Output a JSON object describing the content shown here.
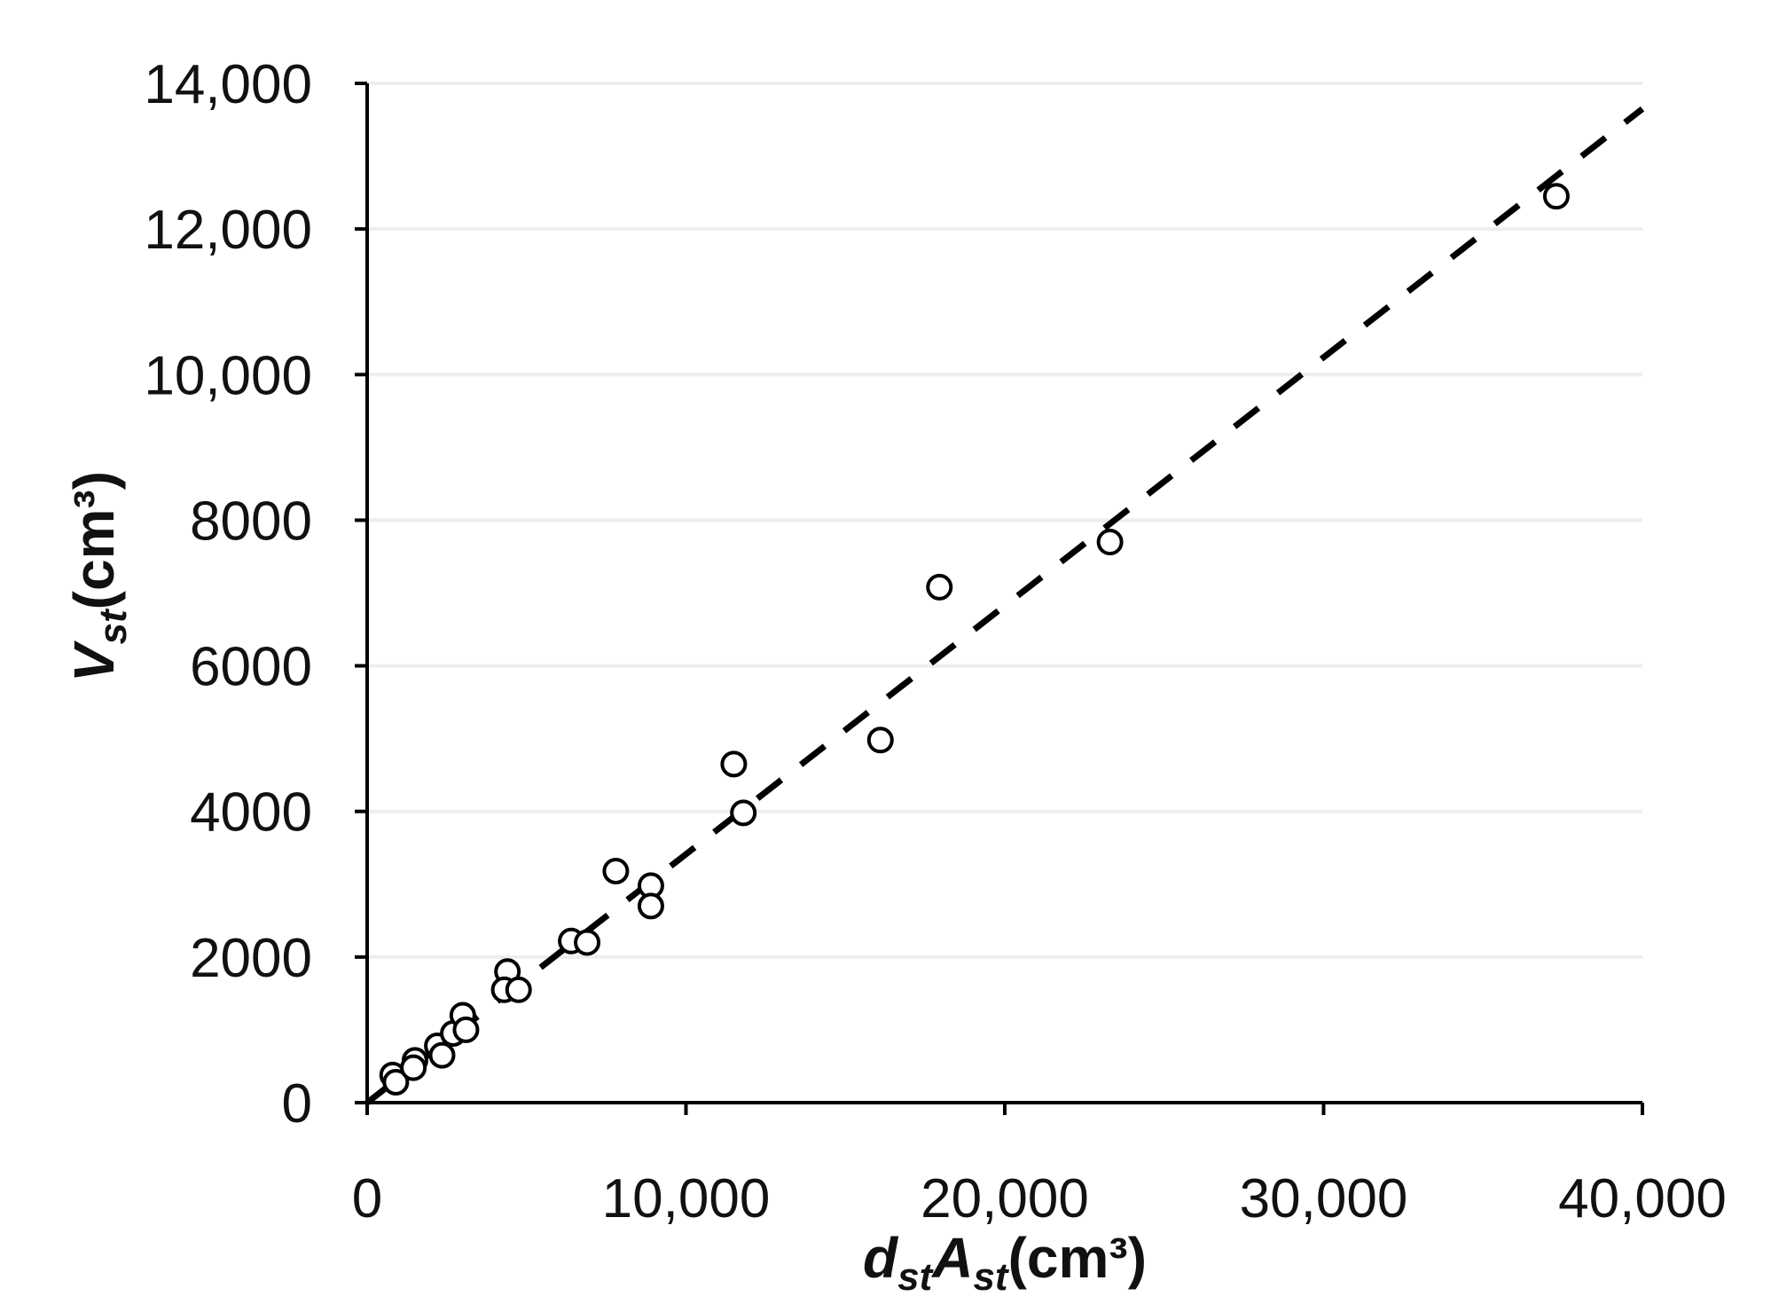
{
  "chart_data": {
    "type": "scatter",
    "xlabel": {
      "main1": "d",
      "sub1": "st",
      "main2": "A",
      "sub2": "st",
      "unit": "(cm³)"
    },
    "ylabel": {
      "main": "V",
      "sub": "st",
      "unit": "(cm³)"
    },
    "xlim": [
      0,
      40000
    ],
    "ylim": [
      0,
      14000
    ],
    "x_ticks": [
      0,
      10000,
      20000,
      30000,
      40000
    ],
    "x_tick_labels": [
      "0",
      "10,000",
      "20,000",
      "30,000",
      "40,000"
    ],
    "y_ticks": [
      0,
      2000,
      4000,
      6000,
      8000,
      10000,
      12000,
      14000
    ],
    "y_tick_labels": [
      "0",
      "2000",
      "4000",
      "6000",
      "8000",
      "10,000",
      "12,000",
      "14,000"
    ],
    "grid": "horizontal",
    "points": [
      {
        "x": 800,
        "y": 380
      },
      {
        "x": 900,
        "y": 280
      },
      {
        "x": 1500,
        "y": 580
      },
      {
        "x": 1450,
        "y": 480
      },
      {
        "x": 2200,
        "y": 780
      },
      {
        "x": 2350,
        "y": 650
      },
      {
        "x": 2700,
        "y": 950
      },
      {
        "x": 3000,
        "y": 1200
      },
      {
        "x": 3100,
        "y": 1000
      },
      {
        "x": 4400,
        "y": 1800
      },
      {
        "x": 4300,
        "y": 1550
      },
      {
        "x": 4750,
        "y": 1550
      },
      {
        "x": 6400,
        "y": 2220
      },
      {
        "x": 6900,
        "y": 2200
      },
      {
        "x": 7800,
        "y": 3180
      },
      {
        "x": 8900,
        "y": 2980
      },
      {
        "x": 8900,
        "y": 2700
      },
      {
        "x": 11500,
        "y": 4650
      },
      {
        "x": 11800,
        "y": 3980
      },
      {
        "x": 16100,
        "y": 4980
      },
      {
        "x": 17950,
        "y": 7080
      },
      {
        "x": 23300,
        "y": 7700
      },
      {
        "x": 37300,
        "y": 12450
      }
    ],
    "trendline": {
      "style": "dashed",
      "x": [
        0,
        40000
      ],
      "y": [
        0,
        13650
      ]
    },
    "colors": {
      "marker": "#000000",
      "trendline": "#000000",
      "grid": "#eeeeee"
    }
  }
}
